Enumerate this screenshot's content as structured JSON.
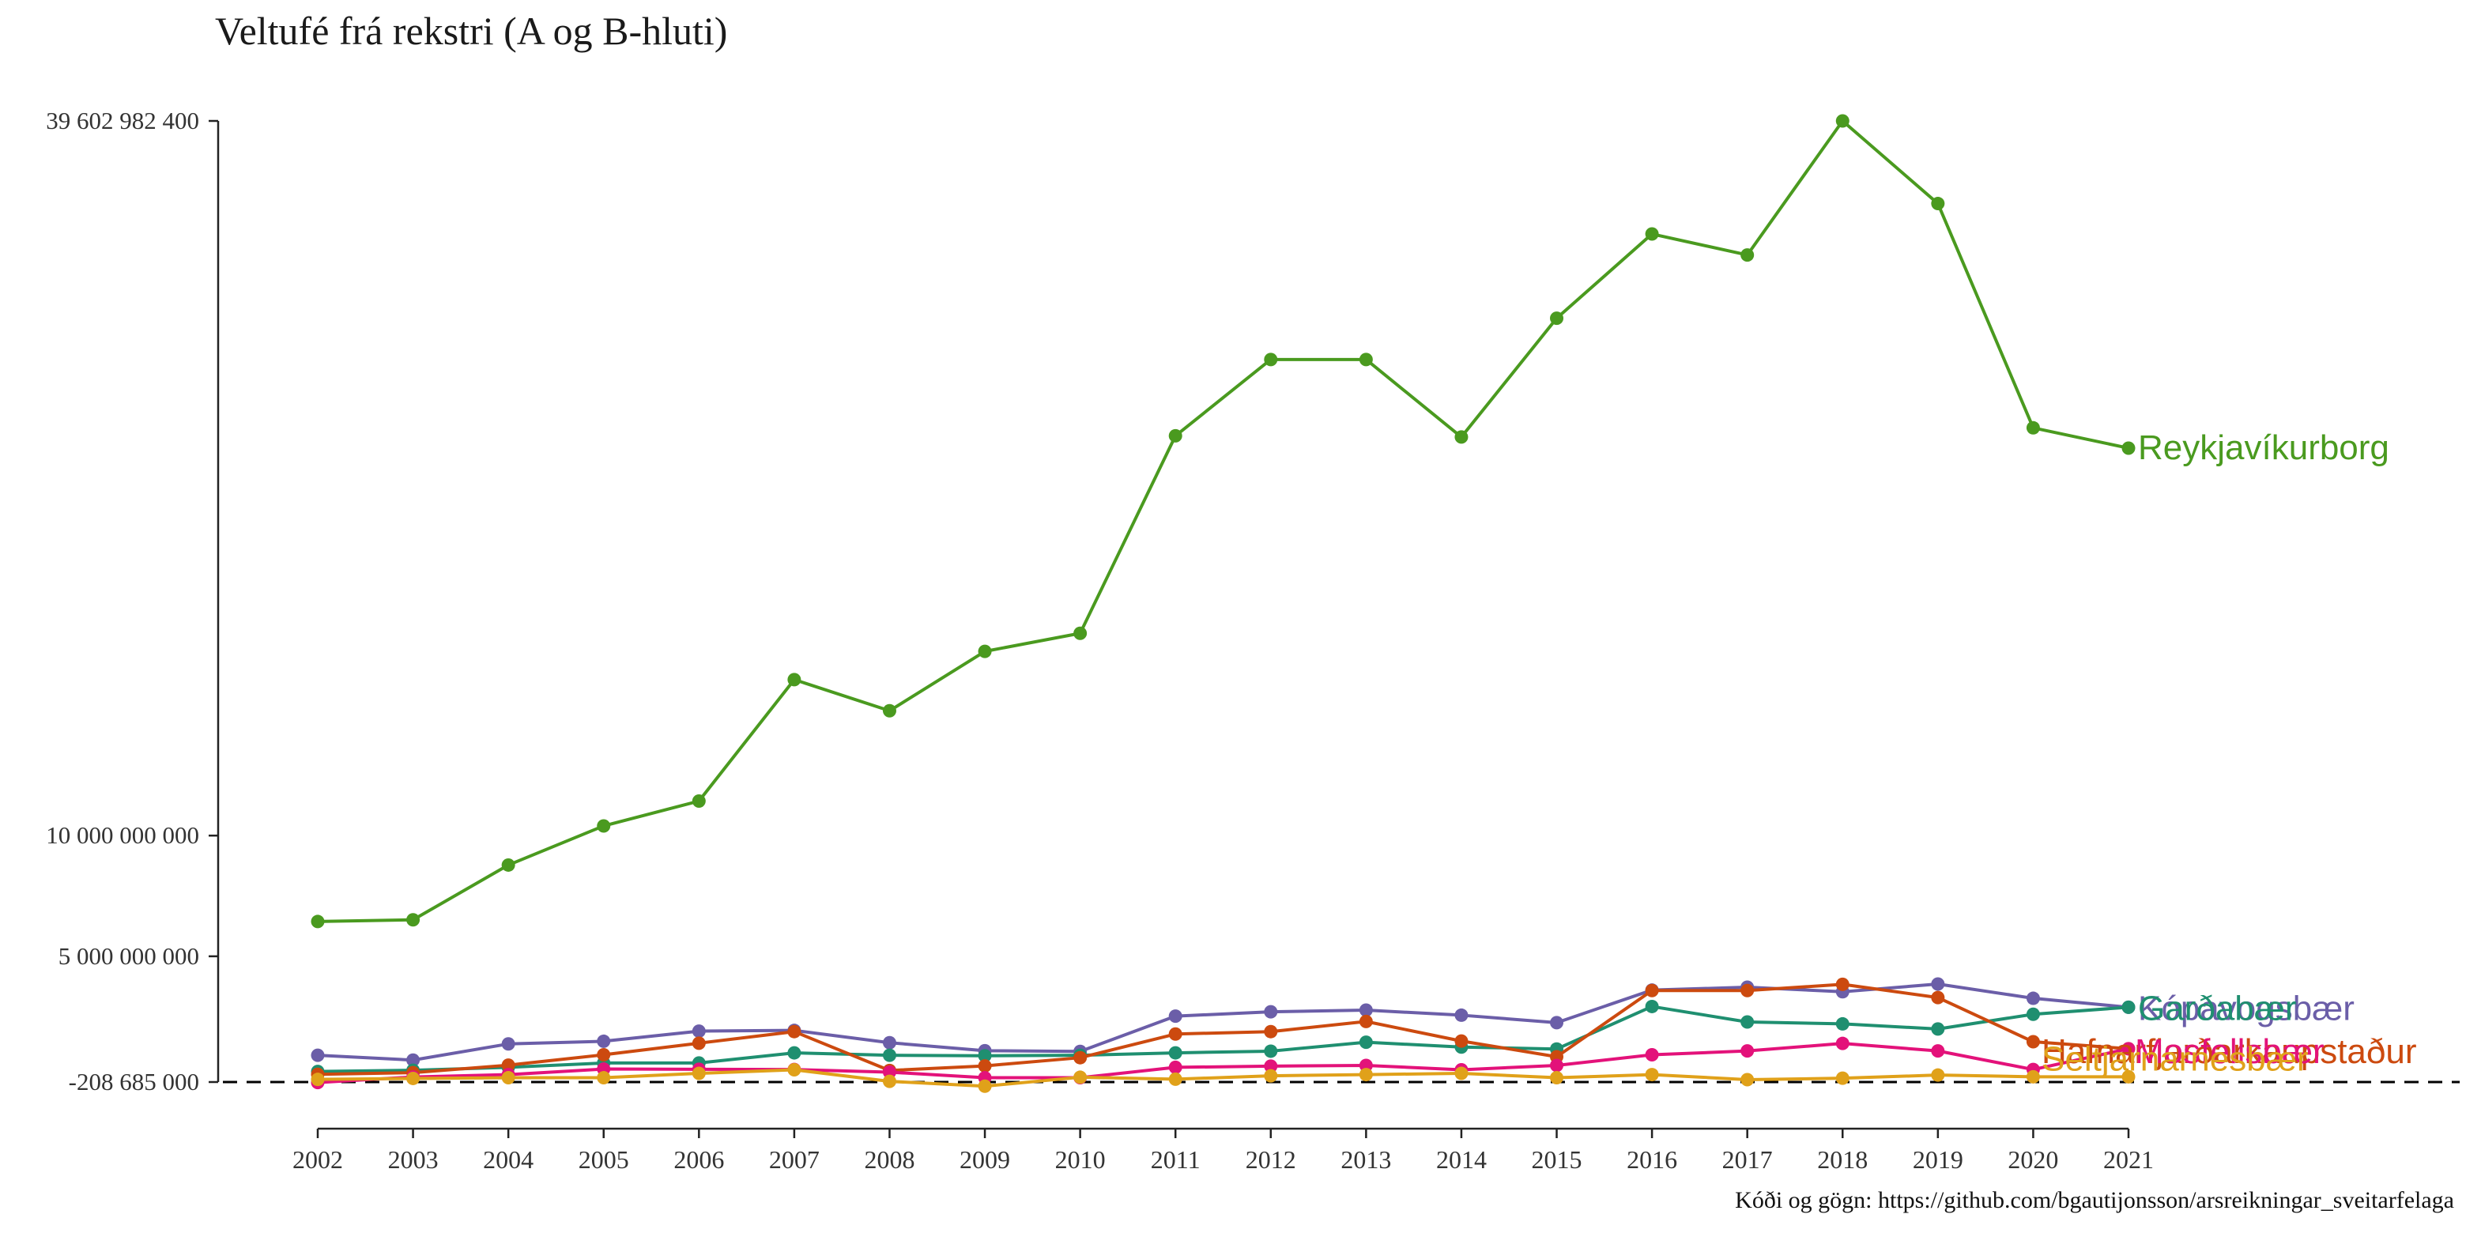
{
  "chart_data": {
    "type": "line",
    "title": "Veltufé frá rekstri (A og B-hluti)",
    "caption": "Kóði og gögn: https://github.com/bgautijonsson/arsreikningar_sveitarfelaga",
    "xlabel": "",
    "ylabel": "",
    "x": [
      2002,
      2003,
      2004,
      2005,
      2006,
      2007,
      2008,
      2009,
      2010,
      2011,
      2012,
      2013,
      2014,
      2015,
      2016,
      2017,
      2018,
      2019,
      2020,
      2021
    ],
    "y_ticks": [
      -208685000,
      5000000000,
      10000000000,
      39602982400
    ],
    "y_tick_labels": [
      "-208 685 000",
      "5 000 000 000",
      "10 000 000 000",
      "39 602 982 400"
    ],
    "ylim": [
      -1900000000,
      39602982400
    ],
    "reference_line": {
      "y": -208685000,
      "style": "dashed",
      "color": "#000000"
    },
    "grid": false,
    "legend": "direct labels at line ends",
    "series": [
      {
        "name": "Reykjavíkurborg",
        "color": "#4a9a1f",
        "values": [
          6440000000,
          6510000000,
          8780000000,
          10400000000,
          11430000000,
          16460000000,
          15170000000,
          17630000000,
          18380000000,
          26560000000,
          29720000000,
          29720000000,
          26510000000,
          31430000000,
          34920000000,
          34050000000,
          39602982400,
          36180000000,
          26890000000,
          26050000000
        ]
      },
      {
        "name": "Kópavogsbær",
        "color": "#6b5ea8",
        "values": [
          900000000,
          700000000,
          1370000000,
          1480000000,
          1900000000,
          1930000000,
          1420000000,
          1090000000,
          1060000000,
          2520000000,
          2700000000,
          2770000000,
          2560000000,
          2250000000,
          3600000000,
          3720000000,
          3530000000,
          3850000000,
          3260000000,
          2890000000
        ]
      },
      {
        "name": "Garðabær",
        "color": "#1f8f70",
        "values": [
          230000000,
          280000000,
          400000000,
          580000000,
          580000000,
          1000000000,
          900000000,
          880000000,
          900000000,
          1000000000,
          1070000000,
          1440000000,
          1240000000,
          1160000000,
          2920000000,
          2280000000,
          2200000000,
          1990000000,
          2600000000,
          2890000000
        ]
      },
      {
        "name": "Hafnarfjarðarkaupstaður",
        "color": "#cc4a0f",
        "values": [
          110000000,
          180000000,
          490000000,
          920000000,
          1400000000,
          1880000000,
          270000000,
          460000000,
          800000000,
          1780000000,
          1880000000,
          2300000000,
          1490000000,
          840000000,
          3580000000,
          3580000000,
          3840000000,
          3290000000,
          1460000000,
          1170000000
        ]
      },
      {
        "name": "Mosfellsbær",
        "color": "#e3127a",
        "values": [
          -230000000,
          0,
          100000000,
          330000000,
          320000000,
          310000000,
          200000000,
          -30000000,
          -30000000,
          400000000,
          450000000,
          480000000,
          300000000,
          480000000,
          920000000,
          1080000000,
          1390000000,
          1080000000,
          310000000,
          1170000000
        ]
      },
      {
        "name": "Seltjarnarnesbær",
        "color": "#e0a11a",
        "values": [
          -100000000,
          -60000000,
          -30000000,
          -30000000,
          150000000,
          300000000,
          -180000000,
          -380000000,
          -10000000,
          -90000000,
          50000000,
          100000000,
          150000000,
          -30000000,
          100000000,
          -110000000,
          -50000000,
          80000000,
          10000000,
          10000000
        ]
      }
    ]
  }
}
